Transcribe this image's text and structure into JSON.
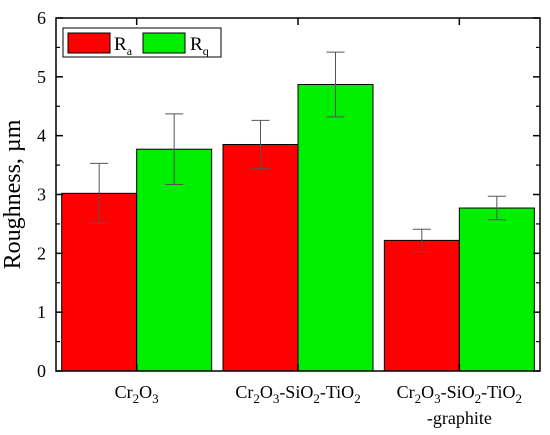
{
  "chart_data": {
    "type": "bar",
    "ylabel": "Roughness, µm",
    "ylim": [
      0,
      6
    ],
    "yticks": [
      "0",
      "1",
      "2",
      "3",
      "4",
      "5",
      "6"
    ],
    "grid": false,
    "legend_position": "top-left",
    "categories": [
      {
        "lines": [
          [
            {
              "t": "Cr"
            },
            {
              "t": "2",
              "sub": true
            },
            {
              "t": "O"
            },
            {
              "t": "3",
              "sub": true
            }
          ]
        ]
      },
      {
        "lines": [
          [
            {
              "t": "Cr"
            },
            {
              "t": "2",
              "sub": true
            },
            {
              "t": "O"
            },
            {
              "t": "3",
              "sub": true
            },
            {
              "t": "-SiO"
            },
            {
              "t": "2",
              "sub": true
            },
            {
              "t": "-TiO"
            },
            {
              "t": "2",
              "sub": true
            }
          ]
        ]
      },
      {
        "lines": [
          [
            {
              "t": "Cr"
            },
            {
              "t": "2",
              "sub": true
            },
            {
              "t": "O"
            },
            {
              "t": "3",
              "sub": true
            },
            {
              "t": "-SiO"
            },
            {
              "t": "2",
              "sub": true
            },
            {
              "t": "-TiO"
            },
            {
              "t": "2",
              "sub": true
            }
          ],
          [
            {
              "t": "-graphite"
            }
          ]
        ]
      }
    ],
    "series": [
      {
        "name": "R",
        "subscript": "a",
        "color": "#ff0000",
        "values": [
          3.02,
          3.85,
          2.22
        ],
        "errors": [
          0.51,
          0.41,
          0.19
        ]
      },
      {
        "name": "R",
        "subscript": "q",
        "color": "#00ee00",
        "values": [
          3.77,
          4.87,
          2.77
        ],
        "errors": [
          0.6,
          0.55,
          0.2
        ]
      }
    ]
  }
}
